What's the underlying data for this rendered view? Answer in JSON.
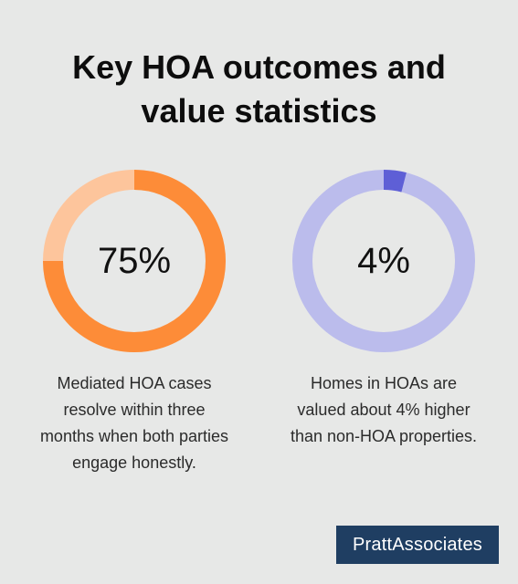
{
  "title_lines": [
    "Key HOA outcomes and",
    "value statistics"
  ],
  "colors": {
    "background": "#e7e8e7",
    "orange": "#fd8c38",
    "orange_light": "#fdc59c",
    "indigo": "#5e5fd6",
    "indigo_light": "#bbbcec",
    "logo_bg": "#1f3e62"
  },
  "chart_data": [
    {
      "type": "pie",
      "value_percent": 75,
      "label": "75%",
      "caption_lines": [
        "Mediated HOA cases",
        "resolve within three",
        "months when both parties",
        "engage honestly."
      ],
      "colors": {
        "value": "#fd8c38",
        "remainder": "#fdc59c"
      }
    },
    {
      "type": "pie",
      "value_percent": 4,
      "label": "4%",
      "caption_lines": [
        "Homes in HOAs are",
        "valued about 4% higher",
        "than non-HOA properties."
      ],
      "colors": {
        "value": "#5e5fd6",
        "remainder": "#bbbcec"
      }
    }
  ],
  "logo": {
    "text": "PrattAssociates"
  }
}
